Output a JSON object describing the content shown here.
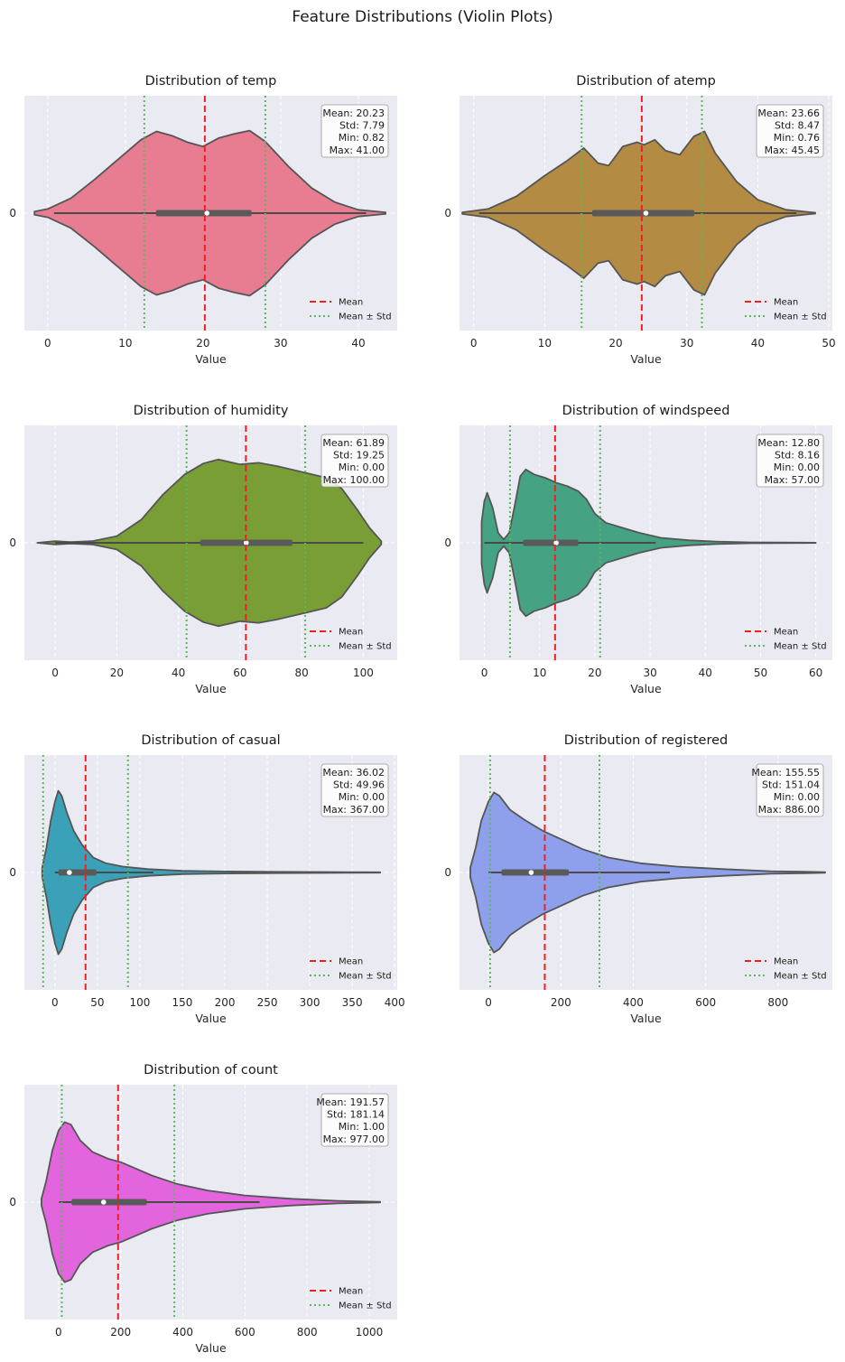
{
  "figure": {
    "suptitle": "Feature Distributions (Violin Plots)"
  },
  "colors": {
    "mean_line": "#f02020",
    "std_line": "#5cb85c",
    "plot_background": "#eaeaf2",
    "violin_edge": "#555555"
  },
  "legend": {
    "mean_label": "Mean",
    "std_label": "Mean ± Std",
    "placement": "lower right"
  },
  "chart_data": [
    {
      "type": "violin",
      "feature": "temp",
      "title": "Distribution of temp",
      "xlabel": "Value",
      "ytick": "0",
      "color": "#e87d92",
      "xlim": [
        -3,
        45
      ],
      "xticks": [
        0,
        10,
        20,
        30,
        40
      ],
      "mean": 20.23,
      "std": 7.79,
      "min": 0.82,
      "max": 41.0,
      "q1": 13.94,
      "median": 20.5,
      "q3": 26.24,
      "whisker_low": 0.82,
      "whisker_high": 41.0,
      "kde_extent": [
        -1.7,
        43.5
      ],
      "density": [
        [
          -1.7,
          0.02
        ],
        [
          0,
          0.05
        ],
        [
          3,
          0.18
        ],
        [
          6,
          0.4
        ],
        [
          9,
          0.64
        ],
        [
          12,
          0.88
        ],
        [
          14,
          0.98
        ],
        [
          16,
          0.93
        ],
        [
          18,
          0.85
        ],
        [
          20,
          0.8
        ],
        [
          22,
          0.9
        ],
        [
          24,
          0.95
        ],
        [
          26,
          0.99
        ],
        [
          28,
          0.86
        ],
        [
          31,
          0.56
        ],
        [
          34,
          0.3
        ],
        [
          37,
          0.13
        ],
        [
          40,
          0.04
        ],
        [
          43.5,
          0.01
        ]
      ],
      "stats_text": [
        "Mean: 20.23",
        "Std: 7.79",
        "Min: 0.82",
        "Max: 41.00"
      ]
    },
    {
      "type": "violin",
      "feature": "atemp",
      "title": "Distribution of atemp",
      "xlabel": "Value",
      "ytick": "0",
      "color": "#b38b43",
      "xlim": [
        -2,
        50.5
      ],
      "xticks": [
        0,
        10,
        20,
        30,
        40,
        50
      ],
      "mean": 23.66,
      "std": 8.47,
      "min": 0.76,
      "max": 45.45,
      "q1": 16.67,
      "median": 24.24,
      "q3": 31.06,
      "whisker_low": 0.76,
      "whisker_high": 45.45,
      "kde_extent": [
        -1.6,
        48.1
      ],
      "density": [
        [
          -1.6,
          0.01
        ],
        [
          2,
          0.05
        ],
        [
          6,
          0.2
        ],
        [
          10,
          0.45
        ],
        [
          13,
          0.62
        ],
        [
          15.5,
          0.78
        ],
        [
          17.5,
          0.6
        ],
        [
          19,
          0.57
        ],
        [
          21,
          0.8
        ],
        [
          23,
          0.85
        ],
        [
          24,
          0.82
        ],
        [
          25.5,
          0.88
        ],
        [
          27,
          0.75
        ],
        [
          29,
          0.7
        ],
        [
          31,
          0.92
        ],
        [
          32.5,
          0.98
        ],
        [
          34,
          0.72
        ],
        [
          37,
          0.38
        ],
        [
          40,
          0.16
        ],
        [
          44,
          0.04
        ],
        [
          48.1,
          0.005
        ]
      ],
      "stats_text": [
        "Mean: 23.66",
        "Std: 8.47",
        "Min: 0.76",
        "Max: 45.45"
      ]
    },
    {
      "type": "violin",
      "feature": "humidity",
      "title": "Distribution of humidity",
      "xlabel": "Value",
      "ytick": "0",
      "color": "#7a9e36",
      "xlim": [
        -10,
        111
      ],
      "xticks": [
        0,
        20,
        40,
        60,
        80,
        100
      ],
      "mean": 61.89,
      "std": 19.25,
      "min": 0.0,
      "max": 100.0,
      "q1": 47.0,
      "median": 62.0,
      "q3": 77.0,
      "whisker_low": 0.0,
      "whisker_high": 100.0,
      "kde_extent": [
        -5.8,
        105.8
      ],
      "density": [
        [
          -5.8,
          0.0
        ],
        [
          0,
          0.02
        ],
        [
          5,
          0.01
        ],
        [
          12,
          0.02
        ],
        [
          20,
          0.08
        ],
        [
          28,
          0.28
        ],
        [
          35,
          0.58
        ],
        [
          42,
          0.82
        ],
        [
          48,
          0.95
        ],
        [
          53,
          1.0
        ],
        [
          60,
          0.94
        ],
        [
          66,
          0.96
        ],
        [
          72,
          0.92
        ],
        [
          80,
          0.85
        ],
        [
          88,
          0.78
        ],
        [
          93,
          0.65
        ],
        [
          98,
          0.4
        ],
        [
          102,
          0.18
        ],
        [
          105.8,
          0.02
        ]
      ],
      "stats_text": [
        "Mean: 61.89",
        "Std: 19.25",
        "Min: 0.00",
        "Max: 100.00"
      ]
    },
    {
      "type": "violin",
      "feature": "windspeed",
      "title": "Distribution of windspeed",
      "xlabel": "Value",
      "ytick": "0",
      "color": "#45a383",
      "xlim": [
        -4.5,
        63
      ],
      "xticks": [
        0,
        10,
        20,
        30,
        40,
        50,
        60
      ],
      "mean": 12.8,
      "std": 8.16,
      "min": 0.0,
      "max": 57.0,
      "q1": 7.0,
      "median": 13.0,
      "q3": 17.0,
      "whisker_low": 0.0,
      "whisker_high": 31.0,
      "kde_extent": [
        -0.5,
        60.0
      ],
      "density": [
        [
          -0.5,
          0.25
        ],
        [
          0,
          0.5
        ],
        [
          0.5,
          0.6
        ],
        [
          1.5,
          0.42
        ],
        [
          2.5,
          0.12
        ],
        [
          3.5,
          0.04
        ],
        [
          4.5,
          0.12
        ],
        [
          5.5,
          0.45
        ],
        [
          6.5,
          0.8
        ],
        [
          7.5,
          0.88
        ],
        [
          9,
          0.82
        ],
        [
          11,
          0.78
        ],
        [
          13,
          0.72
        ],
        [
          15,
          0.68
        ],
        [
          17,
          0.62
        ],
        [
          18.5,
          0.52
        ],
        [
          20,
          0.35
        ],
        [
          22,
          0.24
        ],
        [
          25,
          0.18
        ],
        [
          28,
          0.12
        ],
        [
          32,
          0.06
        ],
        [
          37,
          0.03
        ],
        [
          42,
          0.015
        ],
        [
          48,
          0.005
        ],
        [
          60,
          0.001
        ]
      ],
      "stats_text": [
        "Mean: 12.80",
        "Std: 8.16",
        "Min: 0.00",
        "Max: 57.00"
      ]
    },
    {
      "type": "violin",
      "feature": "casual",
      "title": "Distribution of casual",
      "xlabel": "Value",
      "ytick": "0",
      "color": "#3aa1b8",
      "xlim": [
        -36,
        403
      ],
      "xticks": [
        0,
        50,
        100,
        150,
        200,
        250,
        300,
        350,
        400
      ],
      "mean": 36.02,
      "std": 49.96,
      "min": 0.0,
      "max": 367.0,
      "q1": 4.0,
      "median": 17.0,
      "q3": 49.0,
      "whisker_low": 0.0,
      "whisker_high": 116.0,
      "kde_extent": [
        -15.0,
        383.0
      ],
      "density": [
        [
          -15,
          0.06
        ],
        [
          -10,
          0.3
        ],
        [
          -5,
          0.62
        ],
        [
          0,
          0.85
        ],
        [
          4,
          0.98
        ],
        [
          8,
          0.92
        ],
        [
          14,
          0.72
        ],
        [
          22,
          0.5
        ],
        [
          32,
          0.33
        ],
        [
          45,
          0.18
        ],
        [
          60,
          0.11
        ],
        [
          80,
          0.07
        ],
        [
          110,
          0.04
        ],
        [
          150,
          0.02
        ],
        [
          200,
          0.012
        ],
        [
          260,
          0.008
        ],
        [
          320,
          0.005
        ],
        [
          383,
          0.002
        ]
      ],
      "stats_text": [
        "Mean: 36.02",
        "Std: 49.96",
        "Min: 0.00",
        "Max: 367.00"
      ]
    },
    {
      "type": "violin",
      "feature": "registered",
      "title": "Distribution of registered",
      "xlabel": "Value",
      "ytick": "0",
      "color": "#8ea0ec",
      "xlim": [
        -80,
        950
      ],
      "xticks": [
        0,
        200,
        400,
        600,
        800
      ],
      "mean": 155.55,
      "std": 151.04,
      "min": 0.0,
      "max": 886.0,
      "q1": 36.0,
      "median": 118.0,
      "q3": 222.0,
      "whisker_low": 0.0,
      "whisker_high": 501.0,
      "kde_extent": [
        -50.0,
        930.0
      ],
      "density": [
        [
          -50,
          0.06
        ],
        [
          -35,
          0.3
        ],
        [
          -20,
          0.62
        ],
        [
          0,
          0.85
        ],
        [
          15,
          0.96
        ],
        [
          30,
          0.92
        ],
        [
          60,
          0.75
        ],
        [
          100,
          0.63
        ],
        [
          150,
          0.5
        ],
        [
          200,
          0.4
        ],
        [
          260,
          0.28
        ],
        [
          330,
          0.18
        ],
        [
          420,
          0.11
        ],
        [
          520,
          0.07
        ],
        [
          650,
          0.04
        ],
        [
          780,
          0.015
        ],
        [
          930,
          0.004
        ]
      ],
      "stats_text": [
        "Mean: 155.55",
        "Std: 151.04",
        "Min: 0.00",
        "Max: 886.00"
      ]
    },
    {
      "type": "violin",
      "feature": "count",
      "title": "Distribution of count",
      "xlabel": "Value",
      "ytick": "0",
      "color": "#e365dd",
      "xlim": [
        -110,
        1090
      ],
      "xticks": [
        0,
        200,
        400,
        600,
        800,
        1000
      ],
      "mean": 191.57,
      "std": 181.14,
      "min": 1.0,
      "max": 977.0,
      "q1": 42.0,
      "median": 145.0,
      "q3": 284.0,
      "whisker_low": 1.0,
      "whisker_high": 647.0,
      "kde_extent": [
        -55.0,
        1035.0
      ],
      "density": [
        [
          -55,
          0.04
        ],
        [
          -40,
          0.25
        ],
        [
          -20,
          0.62
        ],
        [
          0,
          0.86
        ],
        [
          20,
          0.96
        ],
        [
          40,
          0.93
        ],
        [
          70,
          0.74
        ],
        [
          110,
          0.6
        ],
        [
          160,
          0.52
        ],
        [
          200,
          0.48
        ],
        [
          250,
          0.4
        ],
        [
          300,
          0.32
        ],
        [
          380,
          0.22
        ],
        [
          480,
          0.14
        ],
        [
          600,
          0.08
        ],
        [
          750,
          0.04
        ],
        [
          900,
          0.015
        ],
        [
          1035,
          0.003
        ]
      ],
      "stats_text": [
        "Mean: 191.57",
        "Std: 181.14",
        "Min: 1.00",
        "Max: 977.00"
      ]
    }
  ]
}
